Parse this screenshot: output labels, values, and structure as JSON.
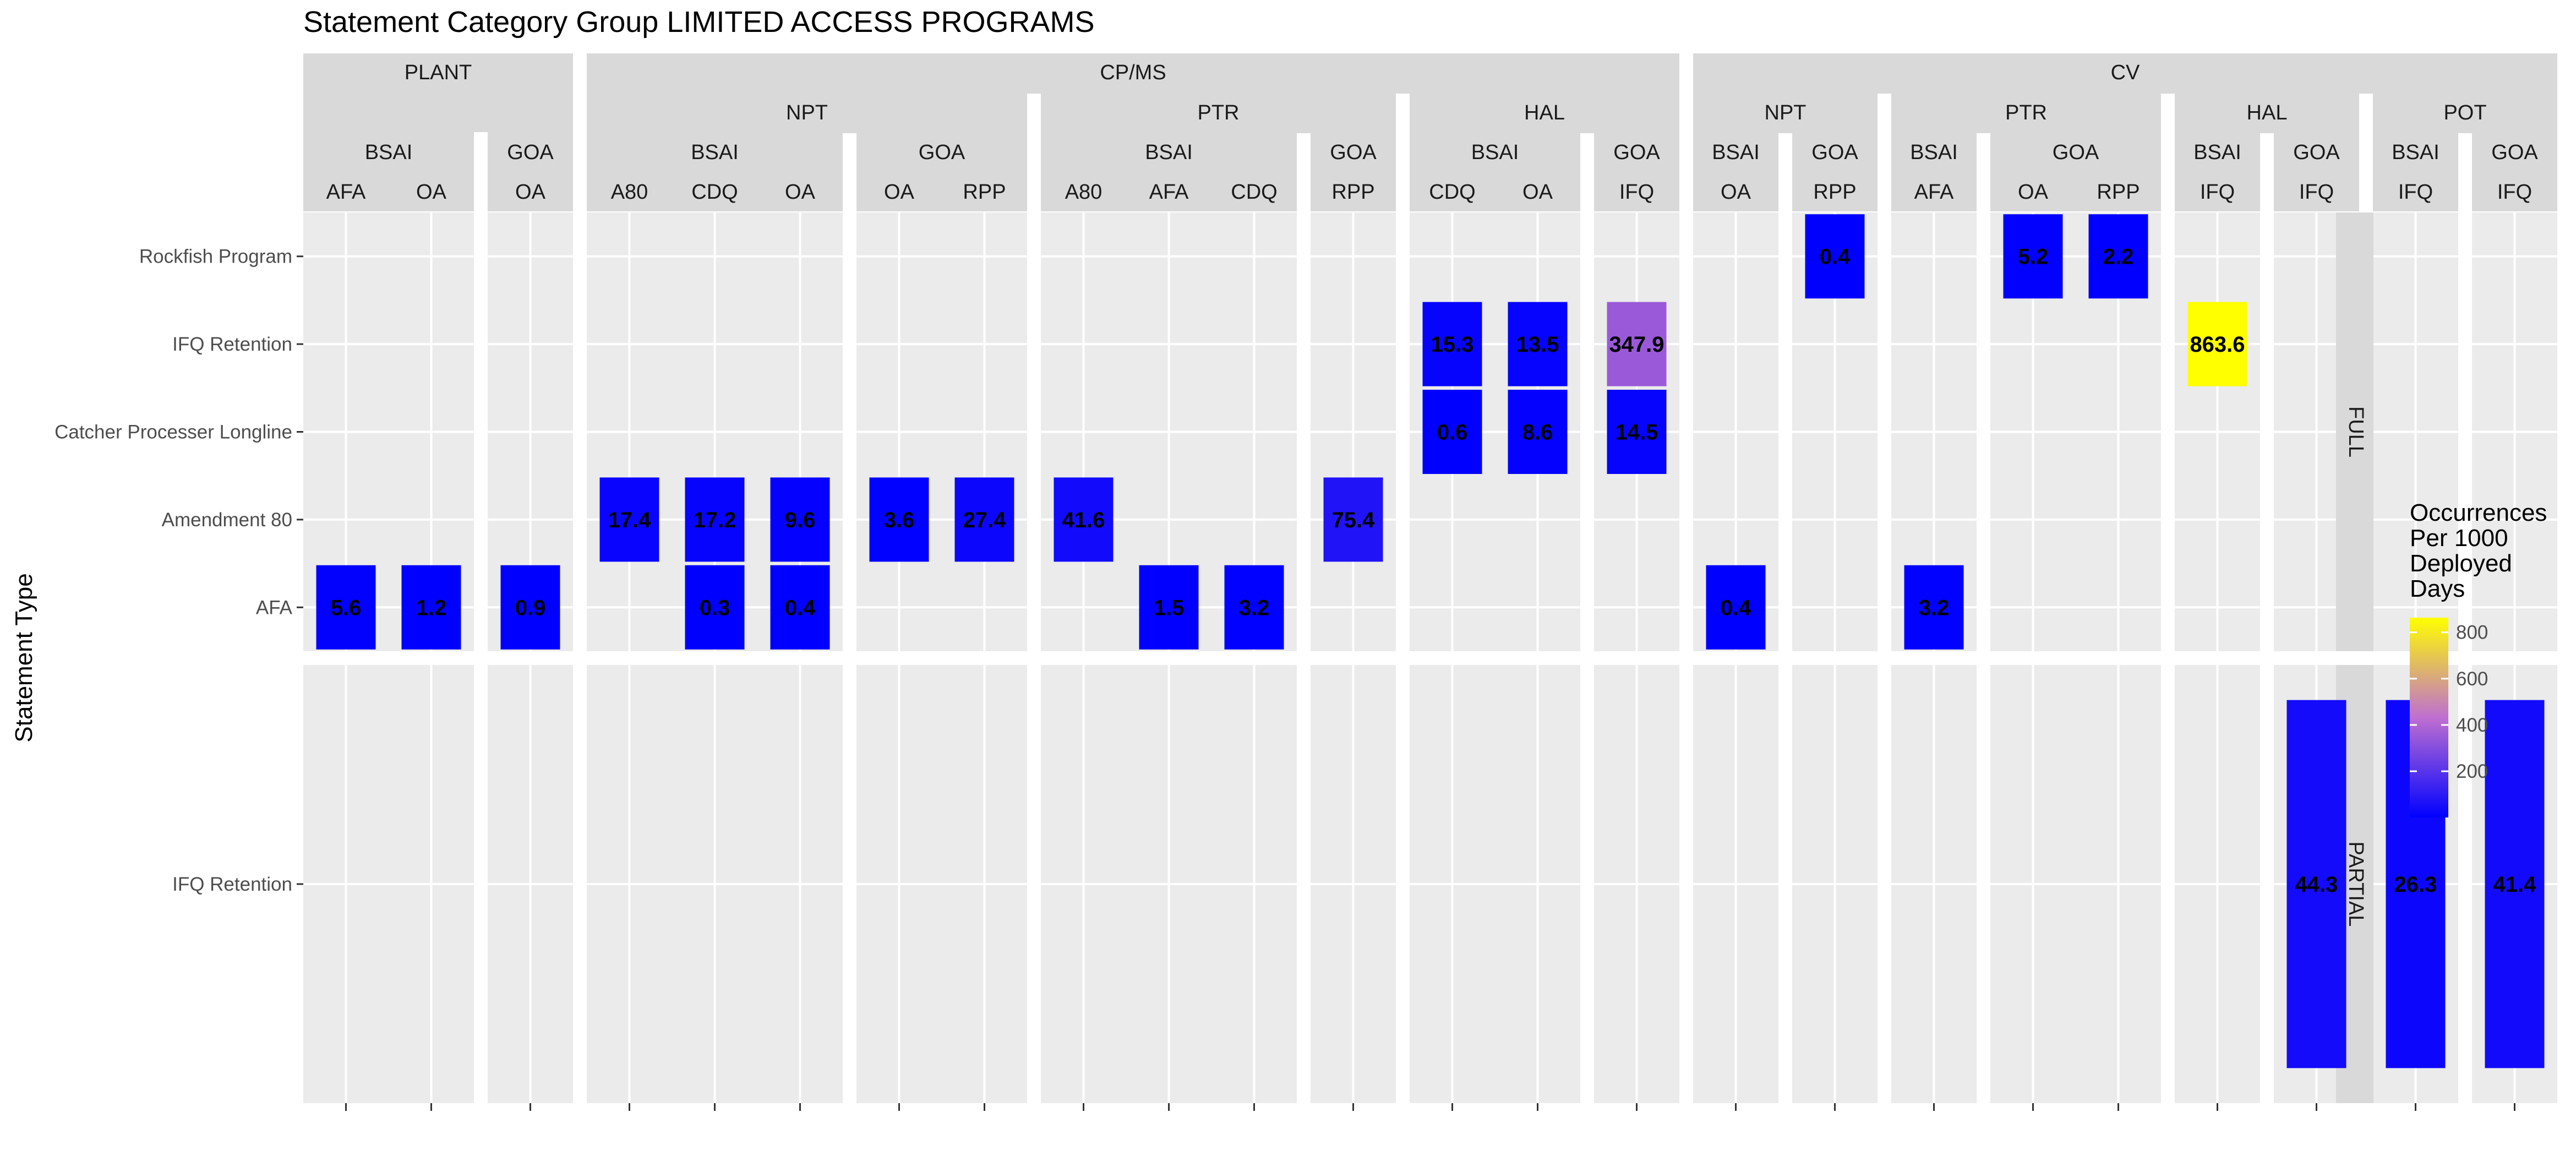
{
  "chart_data": {
    "type": "heatmap",
    "title": "Statement Category Group LIMITED ACCESS PROGRAMS",
    "ylabel": "Statement Type",
    "legend": {
      "title_lines": [
        "Occurrences",
        "Per 1000",
        "Deployed",
        "Days"
      ],
      "ticks": [
        200,
        400,
        600,
        800
      ],
      "range": [
        0.3,
        863.6
      ],
      "colors": [
        "#0000FF",
        "#FFFF00"
      ],
      "mid_color": "#BF6FD0",
      "placement": "right"
    },
    "grid": true,
    "panel_background": "#EBEBEB",
    "strip_background": "#D9D9D9",
    "strip_levels": [
      [
        "PLANT",
        "CP/MS",
        "CV"
      ],
      [
        "NPT",
        "PTR",
        "HAL",
        "NPT",
        "PTR",
        "HAL",
        "POT"
      ],
      [
        "BSAI",
        "GOA",
        "BSAI",
        "GOA",
        "BSAI",
        "GOA",
        "BSAI",
        "GOA",
        "BSAI",
        "GOA",
        "BSAI",
        "GOA",
        "BSAI",
        "GOA",
        "BSAI",
        "GOA"
      ]
    ],
    "panels": [
      {
        "lvl1": "PLANT",
        "lvl2": "",
        "lvl3": "BSAI",
        "x": [
          "AFA",
          "OA"
        ]
      },
      {
        "lvl1": "PLANT",
        "lvl2": "",
        "lvl3": "GOA",
        "x": [
          "OA"
        ]
      },
      {
        "lvl1": "CP/MS",
        "lvl2": "NPT",
        "lvl3": "BSAI",
        "x": [
          "A80",
          "CDQ",
          "OA"
        ]
      },
      {
        "lvl1": "CP/MS",
        "lvl2": "NPT",
        "lvl3": "GOA",
        "x": [
          "OA",
          "RPP"
        ]
      },
      {
        "lvl1": "CP/MS",
        "lvl2": "PTR",
        "lvl3": "BSAI",
        "x": [
          "A80",
          "AFA",
          "CDQ"
        ]
      },
      {
        "lvl1": "CP/MS",
        "lvl2": "PTR",
        "lvl3": "GOA",
        "x": [
          "RPP"
        ]
      },
      {
        "lvl1": "CP/MS",
        "lvl2": "HAL",
        "lvl3": "BSAI",
        "x": [
          "CDQ",
          "OA"
        ]
      },
      {
        "lvl1": "CP/MS",
        "lvl2": "HAL",
        "lvl3": "GOA",
        "x": [
          "IFQ"
        ]
      },
      {
        "lvl1": "CV",
        "lvl2": "NPT",
        "lvl3": "BSAI",
        "x": [
          "OA"
        ]
      },
      {
        "lvl1": "CV",
        "lvl2": "NPT",
        "lvl3": "GOA",
        "x": [
          "RPP"
        ]
      },
      {
        "lvl1": "CV",
        "lvl2": "PTR",
        "lvl3": "BSAI",
        "x": [
          "AFA"
        ]
      },
      {
        "lvl1": "CV",
        "lvl2": "PTR",
        "lvl3": "GOA",
        "x": [
          "OA",
          "RPP"
        ]
      },
      {
        "lvl1": "CV",
        "lvl2": "HAL",
        "lvl3": "BSAI",
        "x": [
          "IFQ"
        ]
      },
      {
        "lvl1": "CV",
        "lvl2": "HAL",
        "lvl3": "GOA",
        "x": [
          "IFQ"
        ]
      },
      {
        "lvl1": "CV",
        "lvl2": "POT",
        "lvl3": "BSAI",
        "x": [
          "IFQ"
        ]
      },
      {
        "lvl1": "CV",
        "lvl2": "POT",
        "lvl3": "GOA",
        "x": [
          "IFQ"
        ]
      }
    ],
    "rows": [
      {
        "name": "FULL",
        "y": [
          "AFA",
          "Amendment 80",
          "Catcher Processer Longline",
          "IFQ Retention",
          "Rockfish Program"
        ]
      },
      {
        "name": "PARTIAL",
        "y": [
          "IFQ Retention"
        ]
      }
    ],
    "cells": [
      {
        "row": 0,
        "panel": 0,
        "x": "AFA",
        "y": "AFA",
        "value": 5.6,
        "label": "5.6"
      },
      {
        "row": 0,
        "panel": 0,
        "x": "OA",
        "y": "AFA",
        "value": 1.2,
        "label": "1.2"
      },
      {
        "row": 0,
        "panel": 1,
        "x": "OA",
        "y": "AFA",
        "value": 0.9,
        "label": "0.9"
      },
      {
        "row": 0,
        "panel": 2,
        "x": "A80",
        "y": "Amendment 80",
        "value": 17.4,
        "label": "17.4"
      },
      {
        "row": 0,
        "panel": 2,
        "x": "CDQ",
        "y": "Amendment 80",
        "value": 17.2,
        "label": "17.2"
      },
      {
        "row": 0,
        "panel": 2,
        "x": "CDQ",
        "y": "AFA",
        "value": 0.3,
        "label": "0.3"
      },
      {
        "row": 0,
        "panel": 2,
        "x": "OA",
        "y": "Amendment 80",
        "value": 9.6,
        "label": "9.6"
      },
      {
        "row": 0,
        "panel": 2,
        "x": "OA",
        "y": "AFA",
        "value": 0.4,
        "label": "0.4"
      },
      {
        "row": 0,
        "panel": 3,
        "x": "OA",
        "y": "Amendment 80",
        "value": 3.6,
        "label": "3.6"
      },
      {
        "row": 0,
        "panel": 3,
        "x": "RPP",
        "y": "Amendment 80",
        "value": 27.4,
        "label": "27.4"
      },
      {
        "row": 0,
        "panel": 4,
        "x": "A80",
        "y": "Amendment 80",
        "value": 41.6,
        "label": "41.6"
      },
      {
        "row": 0,
        "panel": 4,
        "x": "AFA",
        "y": "AFA",
        "value": 1.5,
        "label": "1.5"
      },
      {
        "row": 0,
        "panel": 4,
        "x": "CDQ",
        "y": "AFA",
        "value": 3.2,
        "label": "3.2"
      },
      {
        "row": 0,
        "panel": 5,
        "x": "RPP",
        "y": "Amendment 80",
        "value": 75.4,
        "label": "75.4"
      },
      {
        "row": 0,
        "panel": 6,
        "x": "CDQ",
        "y": "IFQ Retention",
        "value": 15.3,
        "label": "15.3"
      },
      {
        "row": 0,
        "panel": 6,
        "x": "CDQ",
        "y": "Catcher Processer Longline",
        "value": 0.6,
        "label": "0.6"
      },
      {
        "row": 0,
        "panel": 6,
        "x": "OA",
        "y": "IFQ Retention",
        "value": 13.5,
        "label": "13.5"
      },
      {
        "row": 0,
        "panel": 6,
        "x": "OA",
        "y": "Catcher Processer Longline",
        "value": 8.6,
        "label": "8.6"
      },
      {
        "row": 0,
        "panel": 7,
        "x": "IFQ",
        "y": "IFQ Retention",
        "value": 347.9,
        "label": "347.9"
      },
      {
        "row": 0,
        "panel": 7,
        "x": "IFQ",
        "y": "Catcher Processer Longline",
        "value": 14.5,
        "label": "14.5"
      },
      {
        "row": 0,
        "panel": 8,
        "x": "OA",
        "y": "AFA",
        "value": 0.4,
        "label": "0.4"
      },
      {
        "row": 0,
        "panel": 9,
        "x": "RPP",
        "y": "Rockfish Program",
        "value": 0.4,
        "label": "0.4"
      },
      {
        "row": 0,
        "panel": 10,
        "x": "AFA",
        "y": "AFA",
        "value": 3.2,
        "label": "3.2"
      },
      {
        "row": 0,
        "panel": 11,
        "x": "OA",
        "y": "Rockfish Program",
        "value": 5.2,
        "label": "5.2"
      },
      {
        "row": 0,
        "panel": 11,
        "x": "RPP",
        "y": "Rockfish Program",
        "value": 2.2,
        "label": "2.2"
      },
      {
        "row": 0,
        "panel": 12,
        "x": "IFQ",
        "y": "IFQ Retention",
        "value": 863.6,
        "label": "863.6"
      },
      {
        "row": 1,
        "panel": 13,
        "x": "IFQ",
        "y": "IFQ Retention",
        "value": 44.3,
        "label": "44.3"
      },
      {
        "row": 1,
        "panel": 14,
        "x": "IFQ",
        "y": "IFQ Retention",
        "value": 26.3,
        "label": "26.3"
      },
      {
        "row": 1,
        "panel": 15,
        "x": "IFQ",
        "y": "IFQ Retention",
        "value": 41.4,
        "label": "41.4"
      }
    ]
  }
}
